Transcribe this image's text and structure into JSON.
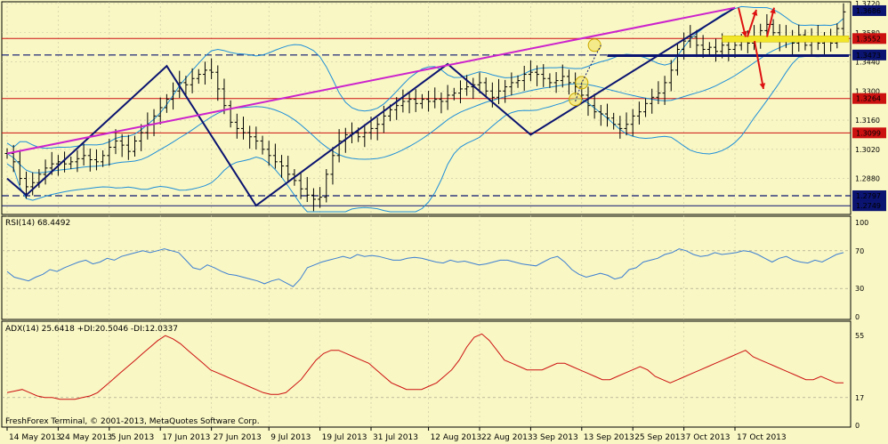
{
  "chart_data": [
    {
      "type": "candlestick",
      "panel": "price",
      "ylim": [
        1.272,
        1.372
      ],
      "price_ticks": [
        "1.3720",
        "1.3580",
        "1.3440",
        "1.3300",
        "1.3160",
        "1.3020",
        "1.2880"
      ],
      "grid": true,
      "price_labels": [
        {
          "value": 1.3686,
          "text": "1.3686",
          "color": "#ffffff",
          "bg": "#0b1470"
        },
        {
          "value": 1.3552,
          "text": "1.3552",
          "color": "#ffffff",
          "bg": "#cc1111"
        },
        {
          "value": 1.3473,
          "text": "1.3473",
          "color": "#ffffff",
          "bg": "#0b1470"
        },
        {
          "value": 1.3264,
          "text": "1.3264",
          "color": "#ffffff",
          "bg": "#cc1111"
        },
        {
          "value": 1.3099,
          "text": "1.3099",
          "color": "#ffffff",
          "bg": "#cc1111"
        },
        {
          "value": 1.2797,
          "text": "1.2797",
          "color": "#ffffff",
          "bg": "#0b1470"
        },
        {
          "value": 1.2749,
          "text": "1.2749",
          "color": "#ffffff",
          "bg": "#0b1470"
        }
      ],
      "horizontal_levels": [
        {
          "value": 1.3552,
          "style": "solid",
          "color": "#cc1111"
        },
        {
          "value": 1.3264,
          "style": "solid",
          "color": "#cc1111"
        },
        {
          "value": 1.3099,
          "style": "solid",
          "color": "#cc1111"
        },
        {
          "value": 1.3473,
          "style": "dashed",
          "color": "#0b1470"
        },
        {
          "value": 1.2797,
          "style": "dashed",
          "color": "#0b1470"
        },
        {
          "value": 1.2749,
          "style": "solid",
          "color": "#0b1470"
        }
      ],
      "series_close": [
        1.3,
        1.296,
        1.288,
        1.284,
        1.286,
        1.29,
        1.293,
        1.295,
        1.296,
        1.295,
        1.296,
        1.2975,
        1.299,
        1.297,
        1.296,
        1.299,
        1.303,
        1.306,
        1.304,
        1.301,
        1.306,
        1.31,
        1.314,
        1.318,
        1.322,
        1.326,
        1.33,
        1.334,
        1.333,
        1.336,
        1.338,
        1.34,
        1.339,
        1.331,
        1.323,
        1.315,
        1.312,
        1.31,
        1.308,
        1.306,
        1.302,
        1.299,
        1.296,
        1.294,
        1.29,
        1.287,
        1.283,
        1.28,
        1.278,
        1.279,
        1.29,
        1.299,
        1.306,
        1.309,
        1.31,
        1.308,
        1.31,
        1.312,
        1.314,
        1.318,
        1.321,
        1.323,
        1.325,
        1.326,
        1.324,
        1.326,
        1.325,
        1.326,
        1.325,
        1.328,
        1.329,
        1.331,
        1.332,
        1.333,
        1.334,
        1.33,
        1.327,
        1.33,
        1.332,
        1.334,
        1.335,
        1.338,
        1.339,
        1.338,
        1.336,
        1.334,
        1.335,
        1.337,
        1.334,
        1.332,
        1.328,
        1.323,
        1.32,
        1.319,
        1.317,
        1.314,
        1.312,
        1.314,
        1.318,
        1.32,
        1.324,
        1.327,
        1.329,
        1.334,
        1.34,
        1.35,
        1.354,
        1.356,
        1.352,
        1.35,
        1.351,
        1.349,
        1.352,
        1.35,
        1.352,
        1.355,
        1.353,
        1.356,
        1.359,
        1.362,
        1.358,
        1.354,
        1.356,
        1.353,
        1.357,
        1.352,
        1.356,
        1.353,
        1.355,
        1.353,
        1.36,
        1.368
      ],
      "x_ticks": [
        {
          "label": "14 May 2013",
          "index": 0
        },
        {
          "label": "24 May 2013",
          "index": 8
        },
        {
          "label": "5 Jun 2013",
          "index": 16
        },
        {
          "label": "17 Jun 2013",
          "index": 24
        },
        {
          "label": "27 Jun 2013",
          "index": 32
        },
        {
          "label": "9 Jul 2013",
          "index": 41
        },
        {
          "label": "19 Jul 2013",
          "index": 49
        },
        {
          "label": "31 Jul 2013",
          "index": 57
        },
        {
          "label": "12 Aug 2013",
          "index": 66
        },
        {
          "label": "22 Aug 2013",
          "index": 74
        },
        {
          "label": "3 Sep 2013",
          "index": 82
        },
        {
          "label": "13 Sep 2013",
          "index": 90
        },
        {
          "label": "25 Sep 2013",
          "index": 98
        },
        {
          "label": "7 Oct 2013",
          "index": 106
        },
        {
          "label": "17 Oct 2013",
          "index": 114
        }
      ]
    },
    {
      "type": "line",
      "panel": "rsi",
      "label": "RSI(14) 68.4492",
      "ylim": [
        0,
        100
      ],
      "y_ticks": [
        "100",
        "70",
        "30",
        "0"
      ],
      "levels": [
        70,
        30
      ],
      "values": [
        48,
        42,
        40,
        38,
        42,
        45,
        50,
        48,
        52,
        55,
        58,
        60,
        56,
        58,
        62,
        60,
        64,
        66,
        68,
        70,
        68,
        70,
        72,
        70,
        68,
        60,
        52,
        50,
        55,
        52,
        48,
        45,
        44,
        42,
        40,
        38,
        35,
        38,
        40,
        36,
        32,
        40,
        52,
        55,
        58,
        60,
        62,
        64,
        62,
        66,
        64,
        65,
        64,
        62,
        60,
        60,
        62,
        63,
        62,
        60,
        58,
        57,
        60,
        58,
        59,
        57,
        55,
        56,
        58,
        60,
        60,
        58,
        56,
        55,
        54,
        58,
        62,
        64,
        58,
        50,
        45,
        42,
        44,
        46,
        44,
        40,
        42,
        50,
        52,
        58,
        60,
        62,
        66,
        68,
        72,
        70,
        66,
        64,
        65,
        68,
        66,
        67,
        68,
        70,
        69,
        66,
        62,
        58,
        62,
        64,
        60,
        58,
        57,
        60,
        58,
        62,
        66,
        68
      ]
    },
    {
      "type": "line",
      "panel": "adx",
      "label": "ADX(14) 25.6418 +DI:20.5046 -DI:12.0337",
      "ylim": [
        0,
        60
      ],
      "y_ticks": [
        "55",
        "17",
        "0"
      ],
      "levels": [
        17
      ],
      "values": [
        20,
        21,
        22,
        20,
        18,
        17,
        17,
        16,
        16,
        16,
        17,
        18,
        20,
        24,
        28,
        32,
        36,
        40,
        44,
        48,
        52,
        55,
        53,
        50,
        46,
        42,
        38,
        34,
        32,
        30,
        28,
        26,
        24,
        22,
        20,
        19,
        19,
        20,
        24,
        28,
        34,
        40,
        44,
        46,
        46,
        44,
        42,
        40,
        38,
        34,
        30,
        26,
        24,
        22,
        22,
        22,
        24,
        26,
        30,
        34,
        40,
        48,
        54,
        56,
        52,
        46,
        40,
        38,
        36,
        34,
        34,
        34,
        36,
        38,
        38,
        36,
        34,
        32,
        30,
        28,
        28,
        30,
        32,
        34,
        36,
        34,
        30,
        28,
        26,
        28,
        30,
        32,
        34,
        36,
        38,
        40,
        42,
        44,
        46,
        42,
        40,
        38,
        36,
        34,
        32,
        30,
        28,
        28,
        30,
        28,
        26,
        26
      ]
    }
  ],
  "watermark": "FreshForex Terminal, © 2001-2013, MetaQuotes Software Corp.",
  "colors": {
    "background": "#f9f7c4",
    "bull_bear": "#000000",
    "bollinger": "#1f8fd8",
    "pink_trend": "#cc22cc",
    "blue_trend": "#0b1470",
    "red_arrows": "#dd1111",
    "rsi_line": "#3d7fd2",
    "adx_line": "#cc1111"
  }
}
